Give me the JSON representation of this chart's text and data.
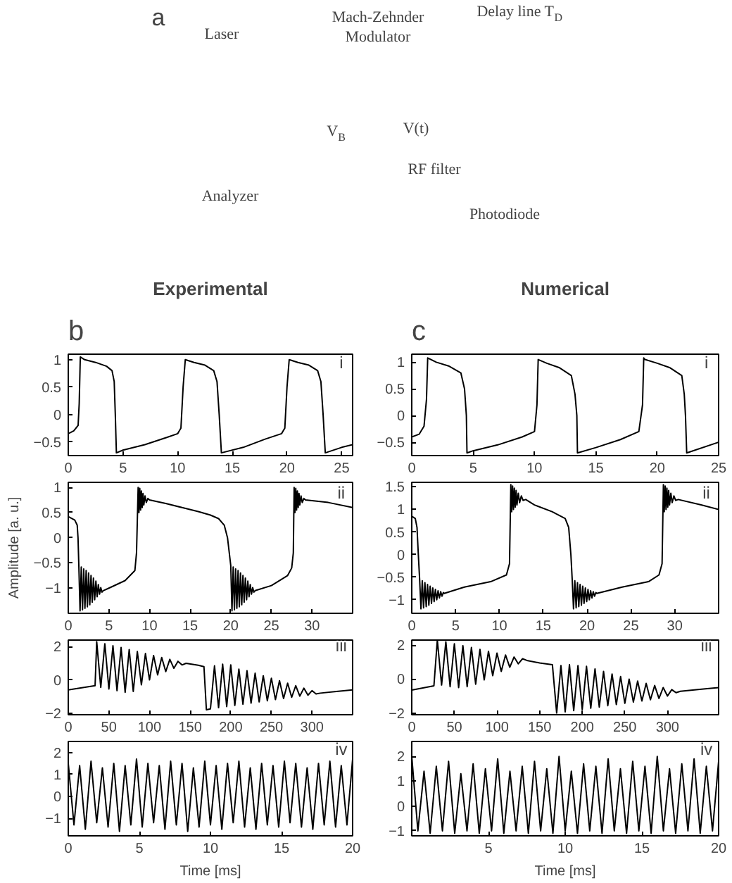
{
  "chart_data": [
    {
      "type": "other",
      "annotations": [
        "a",
        "Laser",
        "Mach-Zehnder",
        "Modulator",
        "Delay line T$_{D}$",
        "V$_{B}$",
        "V(t)",
        "RF filter",
        "Analyzer",
        "Photodiode"
      ]
    },
    {
      "type": "line",
      "title": "Experimental",
      "annotations": [
        "b",
        "i"
      ],
      "xlim": [
        0,
        26
      ],
      "ylim": [
        -0.75,
        1.1
      ],
      "xticks": [
        0,
        5,
        10,
        15,
        20,
        25
      ],
      "yticks": [
        -0.5,
        0,
        0.5,
        1
      ],
      "series": [
        {
          "color": "#000000",
          "x": [
            0,
            0.5,
            0.9,
            1.0,
            1.1,
            1.5,
            2.5,
            3.5,
            4.0,
            4.2,
            4.3,
            4.4,
            5,
            7,
            9,
            10,
            10.3,
            10.5,
            10.7,
            11.5,
            12.5,
            13.3,
            13.6,
            13.8,
            14,
            16,
            18,
            19.5,
            19.8,
            20,
            20.2,
            21,
            22,
            22.8,
            23.1,
            23.3,
            23.5,
            25,
            26
          ],
          "values": [
            -0.35,
            -0.3,
            -0.2,
            0.2,
            1.05,
            1.0,
            0.95,
            0.88,
            0.8,
            0.6,
            0,
            -0.7,
            -0.65,
            -0.55,
            -0.42,
            -0.35,
            -0.25,
            0.5,
            1.0,
            0.95,
            0.9,
            0.8,
            0.6,
            0,
            -0.7,
            -0.6,
            -0.45,
            -0.35,
            -0.25,
            0.5,
            1.0,
            0.95,
            0.9,
            0.8,
            0.6,
            0,
            -0.7,
            -0.6,
            -0.55
          ]
        }
      ]
    },
    {
      "type": "line",
      "title": "Numerical",
      "annotations": [
        "c",
        "i"
      ],
      "xlim": [
        0,
        25
      ],
      "ylim": [
        -0.75,
        1.15
      ],
      "xticks": [
        0,
        5,
        10,
        15,
        20,
        25
      ],
      "yticks": [
        -0.5,
        0,
        0.5,
        1
      ],
      "series": [
        {
          "color": "#000000",
          "x": [
            0,
            0.6,
            1.0,
            1.2,
            1.3,
            2,
            3,
            4,
            4.3,
            4.45,
            4.5,
            5,
            7,
            9,
            10,
            10.2,
            10.3,
            11,
            12,
            13,
            13.3,
            13.45,
            13.5,
            15,
            17,
            18.5,
            18.8,
            18.9,
            19,
            20,
            21,
            22,
            22.2,
            22.3,
            22.4,
            25
          ],
          "values": [
            -0.4,
            -0.35,
            -0.2,
            0.3,
            1.08,
            1.0,
            0.93,
            0.8,
            0.5,
            0,
            -0.7,
            -0.66,
            -0.55,
            -0.4,
            -0.3,
            0.2,
            1.05,
            0.98,
            0.9,
            0.75,
            0.4,
            0,
            -0.7,
            -0.6,
            -0.45,
            -0.3,
            0.2,
            1.08,
            1.05,
            0.98,
            0.9,
            0.75,
            0.4,
            0,
            -0.7,
            -0.5
          ]
        }
      ]
    },
    {
      "type": "line",
      "ylabel": "Amplitude [a. u.]",
      "annotations": [
        "ii"
      ],
      "xlim": [
        0,
        35
      ],
      "ylim": [
        -1.5,
        1.1
      ],
      "xticks": [
        0,
        5,
        10,
        15,
        20,
        25,
        30
      ],
      "yticks": [
        -1,
        -0.5,
        0,
        0.5,
        1
      ],
      "series": [
        {
          "color": "#000000",
          "x": [
            0,
            0.8,
            1.1,
            1.2,
            1.3,
            1.45,
            1.6,
            1.75,
            1.9,
            2.05,
            2.2,
            2.35,
            2.5,
            2.65,
            2.8,
            2.95,
            3.1,
            3.25,
            3.4,
            3.55,
            3.7,
            3.85,
            4.0,
            4.15,
            4.3,
            5,
            7,
            8.2,
            8.4,
            8.6,
            8.7,
            8.8,
            8.9,
            9.0,
            9.1,
            9.2,
            9.3,
            9.45,
            9.6,
            9.8,
            10,
            12,
            14,
            16,
            17.5,
            18.5,
            19.2,
            19.6,
            20.0,
            20.15,
            20.3,
            20.45,
            20.6,
            20.75,
            20.9,
            21.05,
            21.2,
            21.35,
            21.5,
            21.65,
            21.8,
            21.95,
            22.1,
            22.25,
            22.4,
            22.55,
            22.7,
            22.85,
            23.0,
            25,
            27,
            27.5,
            27.7,
            27.8,
            27.9,
            28.0,
            28.1,
            28.2,
            28.3,
            28.4,
            28.5,
            28.65,
            28.8,
            29.0,
            29.2,
            32,
            35
          ],
          "values": [
            0.42,
            0.35,
            0.25,
            0.0,
            -0.55,
            -1.45,
            -0.58,
            -1.43,
            -0.62,
            -1.4,
            -0.65,
            -1.37,
            -0.7,
            -1.33,
            -0.75,
            -1.28,
            -0.8,
            -1.23,
            -0.86,
            -1.17,
            -0.93,
            -1.12,
            -0.99,
            -1.08,
            -1.05,
            -1.0,
            -0.85,
            -0.65,
            -0.3,
            1.0,
            0.5,
            0.98,
            0.55,
            0.93,
            0.6,
            0.88,
            0.65,
            0.83,
            0.7,
            0.78,
            0.75,
            0.68,
            0.6,
            0.52,
            0.45,
            0.38,
            0.25,
            0.0,
            -0.55,
            -1.45,
            -0.58,
            -1.43,
            -0.62,
            -1.4,
            -0.65,
            -1.37,
            -0.7,
            -1.33,
            -0.75,
            -1.28,
            -0.8,
            -1.23,
            -0.86,
            -1.17,
            -0.93,
            -1.12,
            -0.99,
            -1.08,
            -1.05,
            -0.95,
            -0.75,
            -0.6,
            -0.3,
            1.0,
            0.5,
            0.98,
            0.55,
            0.93,
            0.6,
            0.88,
            0.65,
            0.83,
            0.7,
            0.78,
            0.75,
            0.7,
            0.6
          ]
        }
      ]
    },
    {
      "type": "line",
      "annotations": [
        "ii"
      ],
      "xlim": [
        0,
        35
      ],
      "ylim": [
        -1.3,
        1.6
      ],
      "xticks": [
        0,
        5,
        10,
        15,
        20,
        25,
        30
      ],
      "yticks": [
        -1,
        -0.5,
        0,
        0.5,
        1,
        1.5
      ],
      "series": [
        {
          "color": "#000000",
          "x": [
            0,
            0.4,
            0.6,
            0.75,
            0.9,
            1.05,
            1.2,
            1.35,
            1.5,
            1.65,
            1.8,
            1.95,
            2.1,
            2.25,
            2.4,
            2.55,
            2.7,
            2.85,
            3.0,
            3.15,
            3.3,
            3.45,
            3.6,
            3.7,
            6,
            9,
            10.8,
            11.15,
            11.3,
            11.4,
            11.5,
            11.6,
            11.7,
            11.8,
            11.9,
            12.0,
            12.15,
            12.3,
            12.5,
            12.7,
            13.0,
            14,
            16,
            17.5,
            17.9,
            18.15,
            18.3,
            18.45,
            18.6,
            18.75,
            18.9,
            19.05,
            19.2,
            19.35,
            19.5,
            19.65,
            19.8,
            19.95,
            20.1,
            20.25,
            20.4,
            20.55,
            20.7,
            20.85,
            21.0,
            21.1,
            24,
            27,
            28.2,
            28.55,
            28.7,
            28.8,
            28.9,
            29.0,
            29.1,
            29.2,
            29.3,
            29.4,
            29.55,
            29.7,
            29.9,
            30.1,
            30.4,
            33,
            35
          ],
          "values": [
            0.85,
            0.8,
            0.6,
            0.0,
            -0.55,
            -1.2,
            -0.58,
            -1.18,
            -0.62,
            -1.15,
            -0.66,
            -1.12,
            -0.7,
            -1.08,
            -0.74,
            -1.04,
            -0.77,
            -1.0,
            -0.8,
            -0.96,
            -0.82,
            -0.92,
            -0.84,
            -0.86,
            -0.72,
            -0.6,
            -0.45,
            -0.2,
            1.55,
            0.95,
            1.52,
            1.0,
            1.47,
            1.05,
            1.42,
            1.1,
            1.36,
            1.15,
            1.3,
            1.2,
            1.22,
            1.1,
            0.95,
            0.8,
            0.6,
            0.0,
            -0.55,
            -1.2,
            -0.58,
            -1.18,
            -0.62,
            -1.15,
            -0.66,
            -1.12,
            -0.7,
            -1.08,
            -0.74,
            -1.04,
            -0.77,
            -1.0,
            -0.8,
            -0.96,
            -0.82,
            -0.92,
            -0.84,
            -0.86,
            -0.72,
            -0.6,
            -0.45,
            -0.2,
            1.55,
            0.95,
            1.52,
            1.0,
            1.47,
            1.05,
            1.42,
            1.1,
            1.36,
            1.15,
            1.3,
            1.2,
            1.22,
            1.1,
            1.0
          ]
        }
      ]
    },
    {
      "type": "line",
      "annotations": [
        "iii"
      ],
      "xlim": [
        0,
        350
      ],
      "ylim": [
        -2.1,
        2.4
      ],
      "xticks": [
        0,
        50,
        100,
        150,
        200,
        250,
        300
      ],
      "yticks": [
        -2,
        0,
        2
      ],
      "series": [
        {
          "color": "#000000",
          "x": [
            0,
            33,
            35,
            40,
            45,
            50,
            55,
            60,
            65,
            70,
            75,
            80,
            85,
            90,
            95,
            100,
            105,
            110,
            115,
            120,
            125,
            130,
            135,
            140,
            145,
            160,
            167,
            170,
            175,
            180,
            185,
            190,
            195,
            200,
            205,
            210,
            215,
            220,
            225,
            230,
            235,
            240,
            245,
            250,
            255,
            260,
            265,
            270,
            275,
            280,
            285,
            290,
            295,
            300,
            305,
            310,
            330,
            350
          ],
          "values": [
            -0.6,
            -0.35,
            2.3,
            -0.45,
            2.18,
            -0.55,
            2.06,
            -0.65,
            1.95,
            -0.75,
            1.83,
            -0.7,
            1.71,
            -0.3,
            1.59,
            0.0,
            1.47,
            0.3,
            1.35,
            0.5,
            1.24,
            0.7,
            1.12,
            0.9,
            1.0,
            0.88,
            0.8,
            -1.8,
            -1.75,
            0.85,
            -1.68,
            0.95,
            -1.61,
            0.9,
            -1.54,
            0.65,
            -1.47,
            0.55,
            -1.4,
            0.4,
            -1.33,
            0.25,
            -1.26,
            0.1,
            -1.19,
            -0.05,
            -1.12,
            -0.2,
            -1.05,
            -0.35,
            -0.98,
            -0.5,
            -0.92,
            -0.65,
            -0.85,
            -0.8,
            -0.7,
            -0.6
          ]
        }
      ]
    },
    {
      "type": "line",
      "annotations": [
        "iii"
      ],
      "xlim": [
        0,
        360
      ],
      "ylim": [
        -2.1,
        2.3
      ],
      "xticks": [
        0,
        50,
        100,
        150,
        200,
        250,
        300
      ],
      "yticks": [
        -2,
        0,
        2
      ],
      "series": [
        {
          "color": "#000000",
          "x": [
            0,
            26,
            30,
            35,
            40,
            45,
            50,
            55,
            60,
            65,
            70,
            75,
            80,
            85,
            90,
            95,
            100,
            105,
            110,
            115,
            120,
            125,
            130,
            135,
            150,
            165,
            170,
            175,
            180,
            185,
            190,
            195,
            200,
            205,
            210,
            215,
            220,
            225,
            230,
            235,
            240,
            245,
            250,
            255,
            260,
            265,
            270,
            275,
            280,
            285,
            290,
            295,
            300,
            305,
            310,
            315,
            340,
            360
          ],
          "values": [
            -0.65,
            -0.4,
            2.3,
            -0.35,
            2.2,
            -0.45,
            2.08,
            -0.5,
            1.97,
            -0.45,
            1.86,
            -0.3,
            1.75,
            -0.05,
            1.64,
            0.2,
            1.53,
            0.45,
            1.42,
            0.7,
            1.3,
            0.9,
            1.2,
            1.1,
            0.95,
            0.85,
            -2.0,
            0.8,
            -1.93,
            0.85,
            -1.86,
            0.8,
            -1.79,
            0.75,
            -1.72,
            0.6,
            -1.65,
            0.45,
            -1.57,
            0.3,
            -1.5,
            0.15,
            -1.43,
            0.0,
            -1.36,
            -0.12,
            -1.29,
            -0.25,
            -1.22,
            -0.38,
            -1.14,
            -0.5,
            -1.0,
            -0.62,
            -0.8,
            -0.72,
            -0.6,
            -0.5
          ]
        }
      ]
    },
    {
      "type": "line",
      "xlabel": "Time [ms]",
      "annotations": [
        "iv"
      ],
      "xlim": [
        0,
        20
      ],
      "ylim": [
        -1.8,
        2.5
      ],
      "xticks": [
        0,
        5,
        10,
        15,
        20
      ],
      "yticks": [
        -1,
        0,
        1,
        2
      ],
      "series": [
        {
          "color": "#000000",
          "x": [
            0,
            0.4,
            0.8,
            1.2,
            1.6,
            2,
            2.4,
            2.8,
            3.2,
            3.6,
            4,
            4.4,
            4.8,
            5.2,
            5.6,
            6,
            6.4,
            6.8,
            7.2,
            7.6,
            8,
            8.4,
            8.8,
            9.2,
            9.6,
            10,
            10.4,
            10.8,
            11.2,
            11.6,
            12,
            12.4,
            12.8,
            13.2,
            13.6,
            14,
            14.4,
            14.8,
            15.2,
            15.6,
            16,
            16.4,
            16.8,
            17.2,
            17.6,
            18,
            18.4,
            18.8,
            19.2,
            19.6,
            20
          ],
          "values": [
            1.5,
            -1.3,
            1.4,
            -1.5,
            1.6,
            -1.2,
            1.3,
            -1.4,
            1.5,
            -1.6,
            1.4,
            -1.3,
            1.7,
            -1.4,
            1.5,
            -1.2,
            1.4,
            -1.5,
            1.6,
            -1.3,
            1.5,
            -1.6,
            1.3,
            -1.4,
            1.6,
            -1.3,
            1.4,
            -1.5,
            1.5,
            -1.2,
            1.6,
            -1.4,
            1.3,
            -1.5,
            1.5,
            -1.3,
            1.4,
            -1.4,
            1.6,
            -1.2,
            1.5,
            -1.4,
            1.3,
            -1.5,
            1.5,
            -1.3,
            1.6,
            -1.4,
            1.4,
            -1.3,
            1.7
          ]
        }
      ]
    },
    {
      "type": "line",
      "xlabel": "Time [ms]",
      "annotations": [
        "iv"
      ],
      "xlim": [
        0,
        20
      ],
      "ylim": [
        -1.2,
        2.6
      ],
      "xticks": [
        5,
        10,
        15,
        20
      ],
      "yticks": [
        -1,
        0,
        1,
        2
      ],
      "series": [
        {
          "color": "#000000",
          "x": [
            0,
            0.4,
            0.8,
            1.2,
            1.6,
            2,
            2.4,
            2.8,
            3.2,
            3.6,
            4,
            4.4,
            4.8,
            5.2,
            5.6,
            6,
            6.4,
            6.8,
            7.2,
            7.6,
            8,
            8.4,
            8.8,
            9.2,
            9.6,
            10,
            10.4,
            10.8,
            11.2,
            11.6,
            12,
            12.4,
            12.8,
            13.2,
            13.6,
            14,
            14.4,
            14.8,
            15.2,
            15.6,
            16,
            16.4,
            16.8,
            17.2,
            17.6,
            18,
            18.4,
            18.8,
            19.2,
            19.6,
            20
          ],
          "values": [
            2.0,
            -1.0,
            1.4,
            -1.1,
            1.6,
            -1.0,
            1.8,
            -1.1,
            1.3,
            -1.0,
            1.7,
            -1.1,
            1.5,
            -1.0,
            1.9,
            -1.1,
            1.4,
            -1.0,
            1.6,
            -1.1,
            1.8,
            -1.0,
            1.5,
            -1.1,
            2.0,
            -1.0,
            1.4,
            -1.1,
            1.7,
            -1.0,
            1.6,
            -1.1,
            1.9,
            -1.0,
            1.5,
            -1.1,
            1.8,
            -1.0,
            1.6,
            -1.1,
            2.0,
            -1.0,
            1.5,
            -1.1,
            1.7,
            -1.0,
            1.9,
            -1.1,
            1.6,
            -1.0,
            1.8
          ]
        }
      ]
    }
  ]
}
